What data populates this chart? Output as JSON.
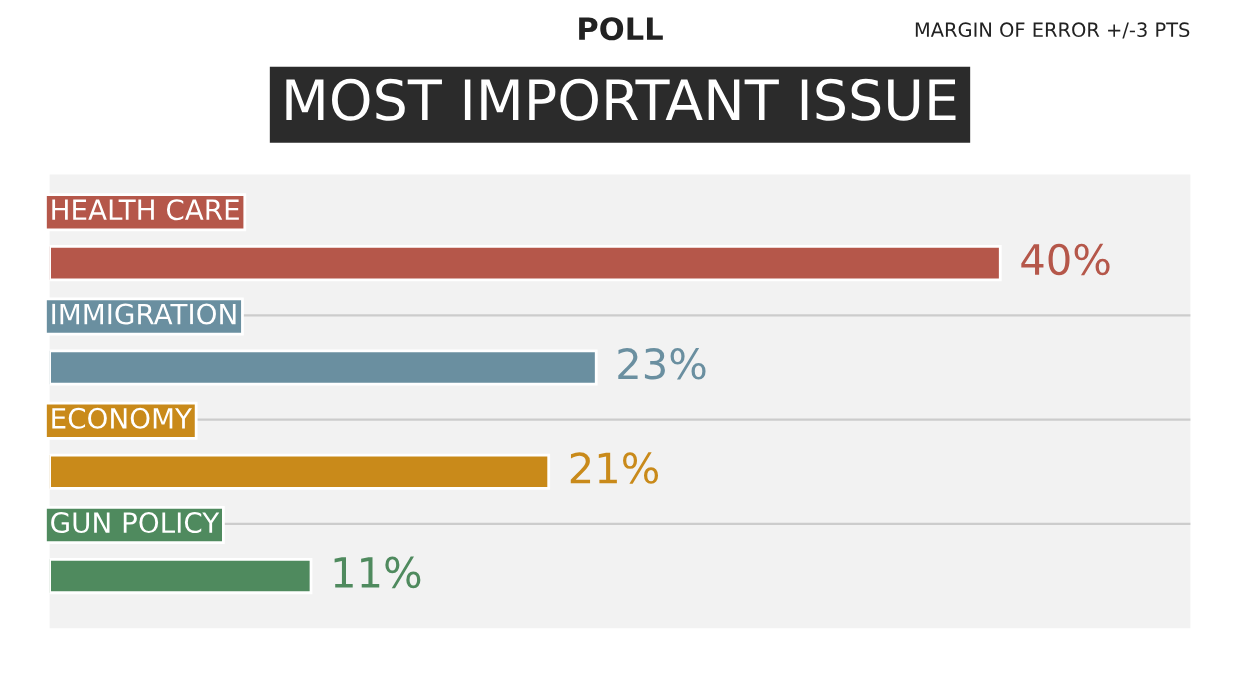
{
  "chart_data": {
    "type": "bar",
    "orientation": "horizontal",
    "title": "MOST IMPORTANT ISSUE",
    "categories": [
      "HEALTH CARE",
      "IMMIGRATION",
      "ECONOMY",
      "GUN POLICY"
    ],
    "values": [
      40,
      23,
      21,
      11
    ],
    "colors": [
      "#b5574a",
      "#6a8fa0",
      "#c98a1a",
      "#4f8a5e"
    ],
    "value_labels": [
      "40%",
      "23%",
      "21%",
      "11%"
    ],
    "annotations": [
      "POLL",
      "MARGIN OF ERROR +/-3 PTS"
    ],
    "legend": false
  }
}
